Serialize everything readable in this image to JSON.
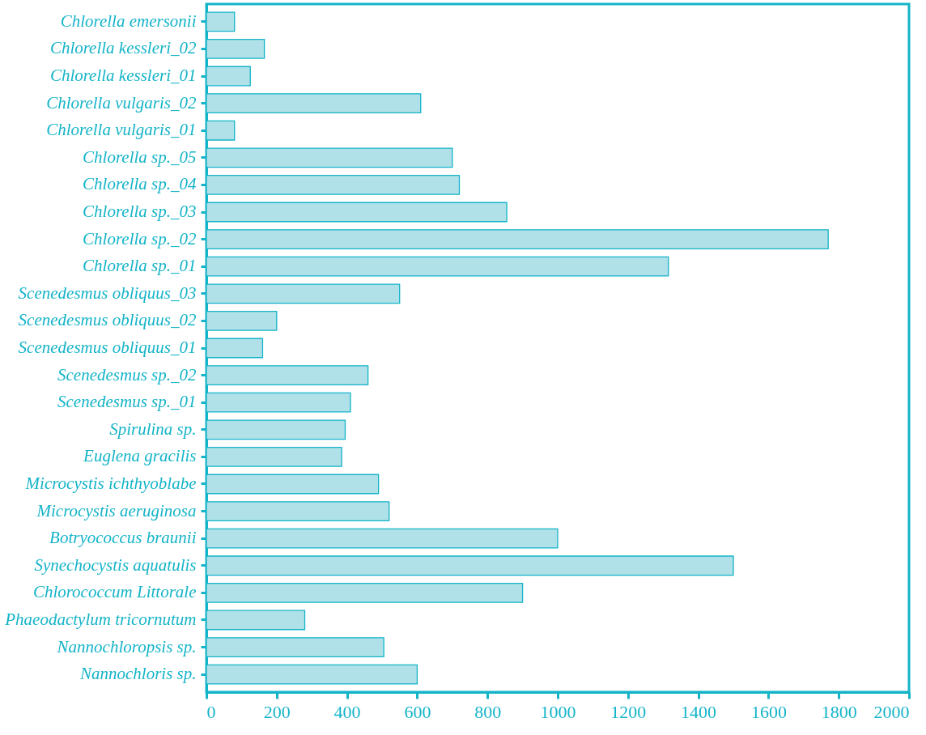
{
  "chart_data": {
    "type": "bar",
    "orientation": "horizontal",
    "categories": [
      "Chlorella emersonii",
      "Chlorella kessleri_02",
      "Chlorella kessleri_01",
      "Chlorella vulgaris_02",
      "Chlorella vulgaris_01",
      "Chlorella sp._05",
      "Chlorella sp._04",
      "Chlorella sp._03",
      "Chlorella sp._02",
      "Chlorella sp._01",
      "Scenedesmus obliquus_03",
      "Scenedesmus obliquus_02",
      "Scenedesmus obliquus_01",
      "Scenedesmus sp._02",
      "Scenedesmus sp._01",
      "Spirulina sp.",
      "Euglena gracilis",
      "Microcystis ichthyoblabe",
      "Microcystis aeruginosa",
      "Botryococcus braunii",
      "Synechocystis aquatulis",
      "Chlorococcum Littorale",
      "Phaeodactylum tricornutum",
      "Nannochloropsis sp.",
      "Nannochloris sp."
    ],
    "values": [
      80,
      165,
      125,
      610,
      80,
      700,
      720,
      855,
      1770,
      1315,
      550,
      200,
      160,
      460,
      410,
      395,
      385,
      490,
      520,
      1000,
      1500,
      900,
      280,
      505,
      600
    ],
    "color": "#b0e0e8",
    "xlim": [
      0,
      2000
    ],
    "xticks": [
      0,
      200,
      400,
      600,
      800,
      1000,
      1200,
      1400,
      1600,
      1800,
      2000
    ],
    "grid": false
  }
}
